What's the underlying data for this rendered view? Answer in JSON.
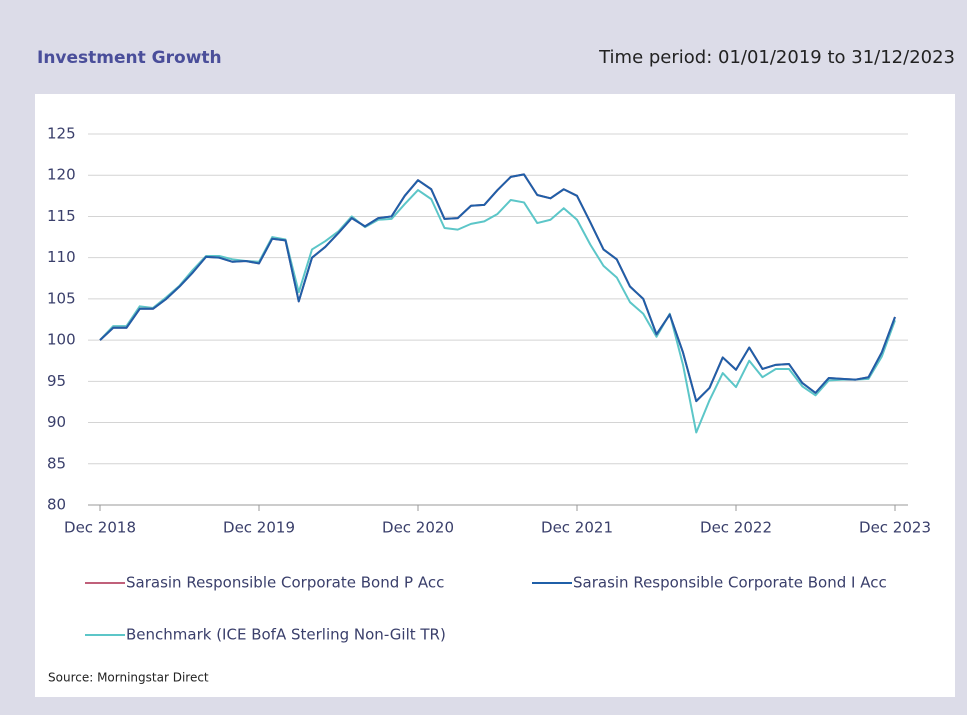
{
  "chart_data": {
    "type": "line",
    "title": "Investment Growth",
    "subtitle": "Time period: 01/01/2019 to 31/12/2023",
    "source": "Source: Morningstar Direct",
    "categories": [
      "Dec 2018",
      null,
      null,
      null,
      null,
      null,
      null,
      null,
      null,
      null,
      null,
      null,
      "Dec 2019",
      null,
      null,
      null,
      null,
      null,
      null,
      null,
      null,
      null,
      null,
      null,
      "Dec 2020",
      null,
      null,
      null,
      null,
      null,
      null,
      null,
      null,
      null,
      null,
      null,
      "Dec 2021",
      null,
      null,
      null,
      null,
      null,
      null,
      null,
      null,
      null,
      null,
      null,
      "Dec 2022",
      null,
      null,
      null,
      null,
      null,
      null,
      null,
      null,
      null,
      null,
      null,
      "Dec 2023"
    ],
    "ylim": [
      80,
      125
    ],
    "yticks": [
      80,
      85,
      90,
      95,
      100,
      105,
      110,
      115,
      120,
      125
    ],
    "grid": true,
    "legend": "bottom",
    "series": [
      {
        "name": "Sarasin Responsible Corporate Bond P Acc",
        "color": "#c0607a",
        "values": [
          100,
          101.5,
          101.5,
          103.8,
          103.8,
          105,
          106.5,
          108.2,
          110.1,
          110,
          109.5,
          109.6,
          109.3,
          112.3,
          112.1,
          104.7,
          110,
          111.3,
          113,
          114.8,
          113.8,
          114.8,
          115,
          117.5,
          119.4,
          118.3,
          114.7,
          114.8,
          116.3,
          116.4,
          118.2,
          119.8,
          120.1,
          117.6,
          117.2,
          118.3,
          117.5,
          114.3,
          111,
          109.8,
          106.5,
          105,
          100.7,
          103.1,
          98.5,
          92.6,
          94.2,
          97.9,
          96.4,
          99.1,
          96.5,
          97,
          97.1,
          94.8,
          93.6,
          95.4,
          95.3,
          95.2,
          95.5,
          98.5,
          102.8
        ]
      },
      {
        "name": "Sarasin Responsible Corporate Bond I Acc",
        "color": "#1f5fa8",
        "values": [
          100,
          101.5,
          101.5,
          103.8,
          103.8,
          105,
          106.5,
          108.2,
          110.1,
          110,
          109.5,
          109.6,
          109.3,
          112.3,
          112.1,
          104.7,
          110,
          111.3,
          113,
          114.8,
          113.8,
          114.8,
          115,
          117.5,
          119.4,
          118.3,
          114.7,
          114.8,
          116.3,
          116.4,
          118.2,
          119.8,
          120.1,
          117.6,
          117.2,
          118.3,
          117.5,
          114.3,
          111,
          109.8,
          106.5,
          105,
          100.7,
          103.1,
          98.5,
          92.6,
          94.2,
          97.9,
          96.4,
          99.1,
          96.5,
          97,
          97.1,
          94.8,
          93.6,
          95.4,
          95.3,
          95.2,
          95.5,
          98.5,
          102.8
        ]
      },
      {
        "name": "Benchmark (ICE BofA Sterling Non-Gilt TR)",
        "color": "#5cc6c8",
        "values": [
          100,
          101.7,
          101.7,
          104.1,
          103.9,
          105.2,
          106.6,
          108.5,
          110.2,
          110.2,
          109.8,
          109.6,
          109.5,
          112.5,
          112.2,
          105.8,
          111,
          112,
          113.2,
          115,
          113.7,
          114.6,
          114.7,
          116.5,
          118.2,
          117.1,
          113.6,
          113.4,
          114.1,
          114.4,
          115.3,
          117,
          116.7,
          114.2,
          114.6,
          116,
          114.6,
          111.6,
          109,
          107.6,
          104.6,
          103.2,
          100.4,
          103.2,
          97,
          88.8,
          92.7,
          96,
          94.3,
          97.5,
          95.5,
          96.5,
          96.5,
          94.4,
          93.3,
          95.1,
          95.2,
          95.2,
          95.3,
          98,
          102.4
        ]
      }
    ]
  }
}
